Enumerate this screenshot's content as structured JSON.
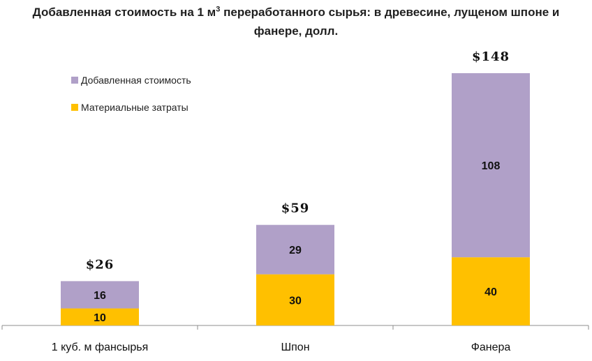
{
  "chart_data": {
    "type": "bar",
    "stacked": true,
    "title_line1_pre": "Добавленная стоимость на 1 м",
    "title_sup": "3",
    "title_line1_post": " переработанного сырья: в древесине, лущеном шпоне и",
    "title_line2": "фанере, долл.",
    "categories": [
      "1 куб. м фансырья",
      "Шпон",
      "Фанера"
    ],
    "series": [
      {
        "name": "Материальные затраты",
        "values": [
          10,
          30,
          40
        ],
        "color": "#FFC000"
      },
      {
        "name": "Добавленная стоимость",
        "values": [
          16,
          29,
          108
        ],
        "color": "#B0A0C8"
      }
    ],
    "totals": [
      "$26",
      "$59",
      "$148"
    ],
    "legend_position": "top-left",
    "ylim": [
      0,
      148
    ],
    "grid": false
  }
}
